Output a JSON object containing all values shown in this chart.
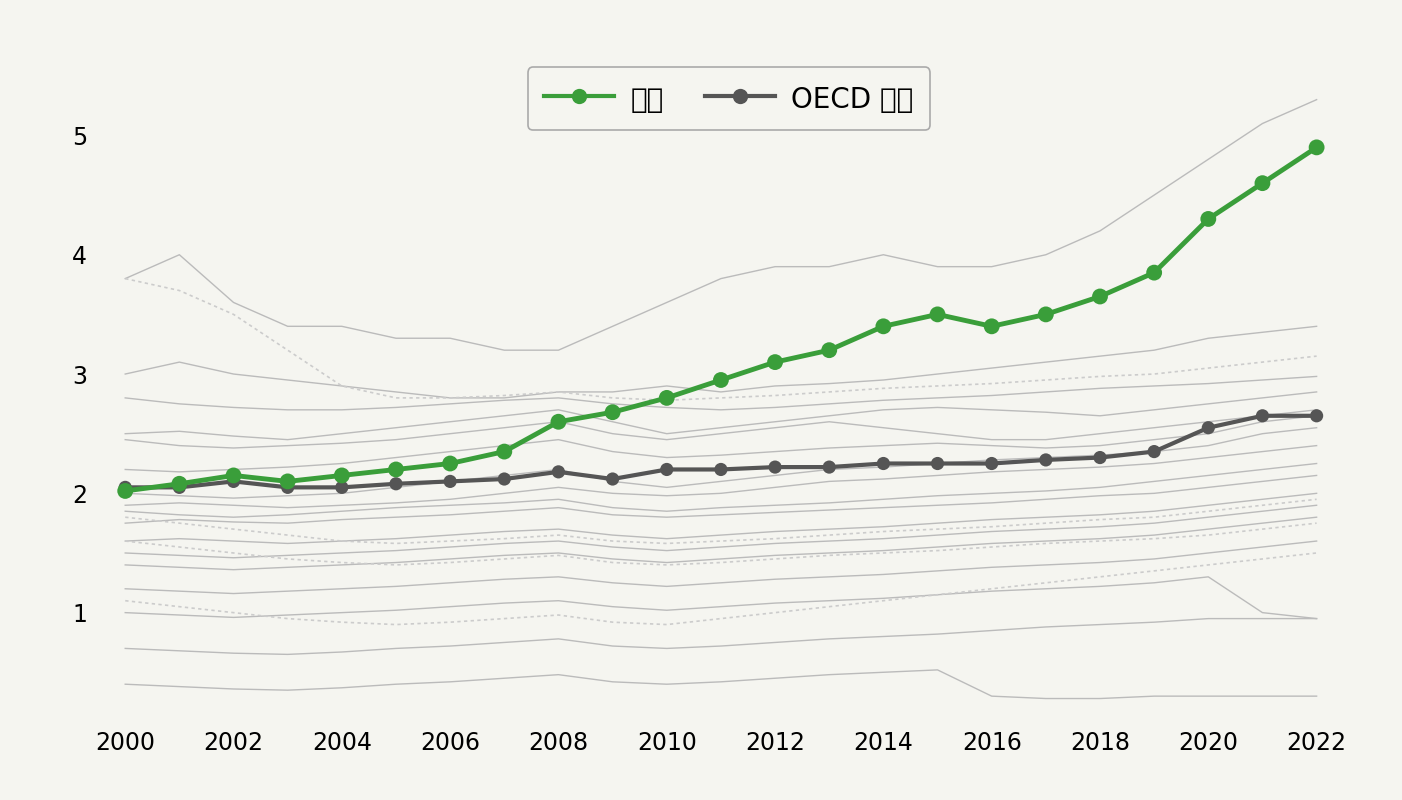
{
  "years": [
    2000,
    2001,
    2002,
    2003,
    2004,
    2005,
    2006,
    2007,
    2008,
    2009,
    2010,
    2011,
    2012,
    2013,
    2014,
    2015,
    2016,
    2017,
    2018,
    2019,
    2020,
    2021,
    2022
  ],
  "korea": [
    2.02,
    2.08,
    2.15,
    2.1,
    2.15,
    2.2,
    2.25,
    2.35,
    2.6,
    2.68,
    2.8,
    2.95,
    3.1,
    3.2,
    3.4,
    3.5,
    3.4,
    3.5,
    3.65,
    3.85,
    4.3,
    4.6,
    4.9
  ],
  "oecd_avg": [
    2.05,
    2.05,
    2.1,
    2.05,
    2.05,
    2.08,
    2.1,
    2.12,
    2.18,
    2.12,
    2.2,
    2.2,
    2.22,
    2.22,
    2.25,
    2.25,
    2.25,
    2.28,
    2.3,
    2.35,
    2.55,
    2.65,
    2.65
  ],
  "background_lines_solid": [
    [
      3.8,
      4.0,
      3.6,
      3.4,
      3.4,
      3.3,
      3.3,
      3.2,
      3.2,
      3.4,
      3.6,
      3.8,
      3.9,
      3.9,
      4.0,
      3.9,
      3.9,
      4.0,
      4.2,
      4.5,
      4.8,
      5.1,
      5.3
    ],
    [
      3.0,
      3.1,
      3.0,
      2.95,
      2.9,
      2.85,
      2.8,
      2.8,
      2.85,
      2.85,
      2.9,
      2.85,
      2.9,
      2.92,
      2.95,
      3.0,
      3.05,
      3.1,
      3.15,
      3.2,
      3.3,
      3.35,
      3.4
    ],
    [
      2.8,
      2.75,
      2.72,
      2.7,
      2.7,
      2.72,
      2.75,
      2.78,
      2.8,
      2.75,
      2.72,
      2.7,
      2.72,
      2.75,
      2.78,
      2.8,
      2.82,
      2.85,
      2.88,
      2.9,
      2.92,
      2.95,
      2.98
    ],
    [
      2.5,
      2.52,
      2.48,
      2.45,
      2.5,
      2.55,
      2.6,
      2.65,
      2.7,
      2.6,
      2.5,
      2.55,
      2.6,
      2.65,
      2.7,
      2.72,
      2.7,
      2.68,
      2.65,
      2.7,
      2.75,
      2.8,
      2.85
    ],
    [
      2.45,
      2.4,
      2.38,
      2.4,
      2.42,
      2.45,
      2.5,
      2.55,
      2.6,
      2.5,
      2.45,
      2.5,
      2.55,
      2.6,
      2.55,
      2.5,
      2.45,
      2.45,
      2.5,
      2.55,
      2.6,
      2.65,
      2.7
    ],
    [
      2.2,
      2.18,
      2.2,
      2.22,
      2.25,
      2.3,
      2.35,
      2.4,
      2.45,
      2.35,
      2.3,
      2.32,
      2.35,
      2.38,
      2.4,
      2.42,
      2.4,
      2.38,
      2.4,
      2.45,
      2.5,
      2.6,
      2.65
    ],
    [
      2.0,
      1.98,
      1.96,
      1.98,
      2.0,
      2.05,
      2.1,
      2.15,
      2.2,
      2.1,
      2.05,
      2.1,
      2.15,
      2.2,
      2.22,
      2.25,
      2.28,
      2.3,
      2.32,
      2.35,
      2.4,
      2.5,
      2.55
    ],
    [
      1.9,
      1.92,
      1.9,
      1.88,
      1.9,
      1.92,
      1.95,
      2.0,
      2.05,
      2.0,
      1.98,
      2.0,
      2.05,
      2.1,
      2.12,
      2.15,
      2.18,
      2.2,
      2.22,
      2.25,
      2.3,
      2.35,
      2.4
    ],
    [
      1.85,
      1.82,
      1.8,
      1.82,
      1.85,
      1.88,
      1.9,
      1.92,
      1.95,
      1.88,
      1.85,
      1.88,
      1.9,
      1.92,
      1.95,
      1.98,
      2.0,
      2.02,
      2.05,
      2.1,
      2.15,
      2.2,
      2.25
    ],
    [
      1.75,
      1.78,
      1.76,
      1.75,
      1.78,
      1.8,
      1.82,
      1.85,
      1.88,
      1.82,
      1.8,
      1.82,
      1.84,
      1.86,
      1.88,
      1.9,
      1.92,
      1.95,
      1.98,
      2.0,
      2.05,
      2.1,
      2.15
    ],
    [
      1.6,
      1.62,
      1.6,
      1.58,
      1.6,
      1.62,
      1.65,
      1.68,
      1.7,
      1.65,
      1.62,
      1.65,
      1.68,
      1.7,
      1.72,
      1.75,
      1.78,
      1.8,
      1.82,
      1.85,
      1.9,
      1.95,
      2.0
    ],
    [
      1.5,
      1.48,
      1.46,
      1.48,
      1.5,
      1.52,
      1.55,
      1.58,
      1.6,
      1.55,
      1.52,
      1.55,
      1.58,
      1.6,
      1.62,
      1.65,
      1.68,
      1.7,
      1.72,
      1.75,
      1.8,
      1.85,
      1.9
    ],
    [
      1.4,
      1.38,
      1.36,
      1.38,
      1.4,
      1.42,
      1.45,
      1.48,
      1.5,
      1.45,
      1.42,
      1.45,
      1.48,
      1.5,
      1.52,
      1.55,
      1.58,
      1.6,
      1.62,
      1.65,
      1.7,
      1.75,
      1.8
    ],
    [
      1.2,
      1.18,
      1.16,
      1.18,
      1.2,
      1.22,
      1.25,
      1.28,
      1.3,
      1.25,
      1.22,
      1.25,
      1.28,
      1.3,
      1.32,
      1.35,
      1.38,
      1.4,
      1.42,
      1.45,
      1.5,
      1.55,
      1.6
    ],
    [
      1.0,
      0.98,
      0.96,
      0.98,
      1.0,
      1.02,
      1.05,
      1.08,
      1.1,
      1.05,
      1.02,
      1.05,
      1.08,
      1.1,
      1.12,
      1.15,
      1.18,
      1.2,
      1.22,
      1.25,
      1.3,
      1.0,
      0.95
    ],
    [
      0.7,
      0.68,
      0.66,
      0.65,
      0.67,
      0.7,
      0.72,
      0.75,
      0.78,
      0.72,
      0.7,
      0.72,
      0.75,
      0.78,
      0.8,
      0.82,
      0.85,
      0.88,
      0.9,
      0.92,
      0.95,
      0.95,
      0.95
    ],
    [
      0.4,
      0.38,
      0.36,
      0.35,
      0.37,
      0.4,
      0.42,
      0.45,
      0.48,
      0.42,
      0.4,
      0.42,
      0.45,
      0.48,
      0.5,
      0.52,
      0.3,
      0.28,
      0.28,
      0.3,
      0.3,
      0.3,
      0.3
    ]
  ],
  "background_lines_dotted": [
    [
      3.8,
      3.7,
      3.5,
      3.2,
      2.9,
      2.8,
      2.8,
      2.82,
      2.85,
      2.8,
      2.78,
      2.8,
      2.82,
      2.85,
      2.88,
      2.9,
      2.92,
      2.95,
      2.98,
      3.0,
      3.05,
      3.1,
      3.15
    ],
    [
      1.8,
      1.75,
      1.7,
      1.65,
      1.6,
      1.58,
      1.6,
      1.62,
      1.65,
      1.6,
      1.58,
      1.6,
      1.62,
      1.65,
      1.68,
      1.7,
      1.72,
      1.75,
      1.78,
      1.8,
      1.85,
      1.9,
      1.95
    ],
    [
      1.6,
      1.55,
      1.5,
      1.45,
      1.42,
      1.4,
      1.42,
      1.45,
      1.48,
      1.42,
      1.4,
      1.42,
      1.45,
      1.48,
      1.5,
      1.52,
      1.55,
      1.58,
      1.6,
      1.62,
      1.65,
      1.7,
      1.75
    ],
    [
      1.1,
      1.05,
      1.0,
      0.95,
      0.92,
      0.9,
      0.92,
      0.95,
      0.98,
      0.92,
      0.9,
      0.95,
      1.0,
      1.05,
      1.1,
      1.15,
      1.2,
      1.25,
      1.3,
      1.35,
      1.4,
      1.45,
      1.5
    ]
  ],
  "legend_labels": [
    "한국",
    "OECD 평균"
  ],
  "korea_color": "#3a9e3a",
  "oecd_color": "#555555",
  "bg_line_color": "#bbbbbb",
  "bg_dot_color": "#cccccc",
  "yticks": [
    1,
    2,
    3,
    4,
    5
  ],
  "xticks": [
    2000,
    2002,
    2004,
    2006,
    2008,
    2010,
    2012,
    2014,
    2016,
    2018,
    2020,
    2022
  ],
  "ylim": [
    0.1,
    5.8
  ],
  "xlim": [
    1999.5,
    2022.8
  ],
  "background_color": "#f5f5f0"
}
